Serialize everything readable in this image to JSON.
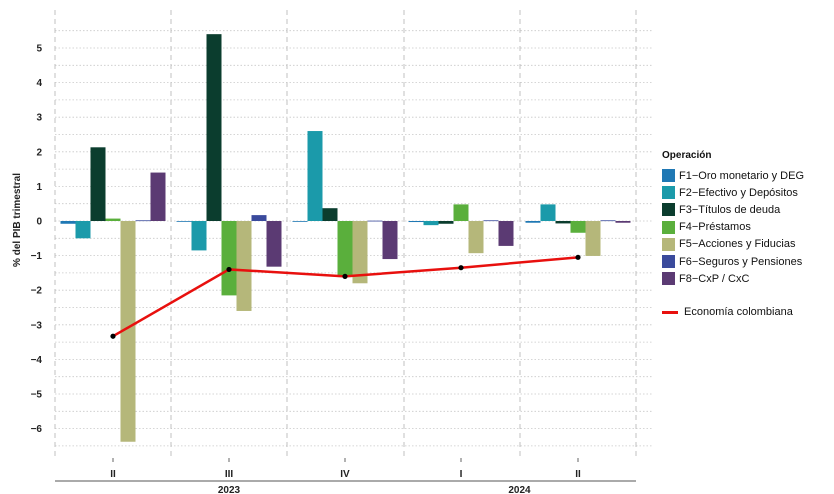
{
  "chart_data": {
    "type": "bar",
    "ylabel": "% del PIB trimestral",
    "ylim": [
      -6.5,
      5.5
    ],
    "yticks": [
      -6,
      -5,
      -4,
      -3,
      -2,
      -1,
      0,
      1,
      2,
      3,
      4,
      5
    ],
    "categories": [
      "II",
      "III",
      "IV",
      "I",
      "II"
    ],
    "years": [
      {
        "label": "2023",
        "from": 0,
        "to": 2
      },
      {
        "label": "2024",
        "from": 3,
        "to": 4
      }
    ],
    "legend_title": "Operación",
    "legend_position": "right",
    "grid": true,
    "series": [
      {
        "name": "F1−Oro monetario y DEG",
        "color": "#1f78b4",
        "values": [
          -0.08,
          -0.02,
          -0.01,
          -0.03,
          -0.05
        ]
      },
      {
        "name": "F2−Efectivo y Depósitos",
        "color": "#1b9aaa",
        "values": [
          -0.5,
          -0.85,
          2.6,
          -0.12,
          0.48
        ]
      },
      {
        "name": "F3−Títulos de deuda",
        "color": "#0b3d2e",
        "values": [
          2.13,
          5.4,
          0.37,
          -0.08,
          -0.07
        ]
      },
      {
        "name": "F4−Préstamos",
        "color": "#5aaf3c",
        "values": [
          0.07,
          -2.15,
          -1.62,
          0.48,
          -0.34
        ]
      },
      {
        "name": "F5−Acciones y Fiducias",
        "color": "#b5b77a",
        "values": [
          -6.38,
          -2.6,
          -1.8,
          -0.93,
          -1.01
        ]
      },
      {
        "name": "F6−Seguros y Pensiones",
        "color": "#3a4a9c",
        "values": [
          0.02,
          0.17,
          0.01,
          0.02,
          0.02
        ]
      },
      {
        "name": "F8−CxP / CxC",
        "color": "#5b3a73",
        "values": [
          1.4,
          -1.32,
          -1.1,
          -0.72,
          -0.05
        ]
      }
    ],
    "line_series": {
      "name": "Economía colombiana",
      "color": "#e8100e",
      "values": [
        -3.33,
        -1.4,
        -1.6,
        -1.35,
        -1.05
      ]
    }
  }
}
